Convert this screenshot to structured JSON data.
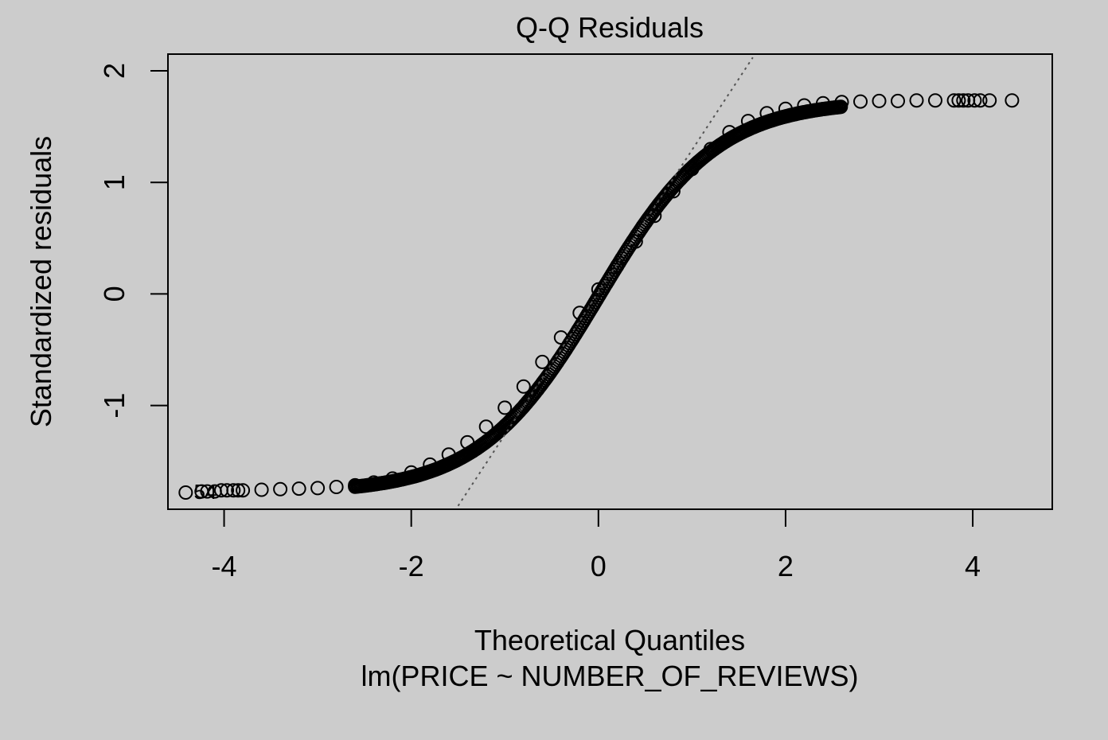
{
  "chart_data": {
    "type": "scatter",
    "title": "Q-Q Residuals",
    "xlabel": "Theoretical Quantiles",
    "subtitle": "lm(PRICE ~ NUMBER_OF_REVIEWS)",
    "ylabel": "Standardized residuals",
    "xlim": [
      -4.6,
      4.85
    ],
    "ylim": [
      -1.93,
      2.15
    ],
    "xticks": [
      -4,
      -2,
      0,
      2,
      4
    ],
    "yticks": [
      -1,
      0,
      1,
      2
    ],
    "xtick_labels": [
      "-4",
      "-2",
      "0",
      "2",
      "4"
    ],
    "ytick_labels": [
      "-1",
      "0",
      "1",
      "2"
    ],
    "grid": false,
    "reference_line": {
      "style": "dotted",
      "through": [
        [
          -1.5,
          -1.9
        ],
        [
          1.65,
          2.12
        ]
      ]
    },
    "series_points": [
      [
        -4.41,
        -1.78
      ],
      [
        -4.24,
        -1.77
      ],
      [
        -4.18,
        -1.77
      ],
      [
        -4.1,
        -1.77
      ],
      [
        -4.03,
        -1.76
      ],
      [
        -3.97,
        -1.76
      ],
      [
        -3.9,
        -1.76
      ],
      [
        -3.85,
        -1.76
      ],
      [
        -3.8,
        -1.76
      ],
      [
        -3.6,
        -1.755
      ],
      [
        -3.4,
        -1.75
      ],
      [
        -3.2,
        -1.745
      ],
      [
        -3.0,
        -1.74
      ],
      [
        -2.8,
        -1.73
      ],
      [
        -2.6,
        -1.715
      ],
      [
        -2.4,
        -1.69
      ],
      [
        -2.2,
        -1.655
      ],
      [
        -2.0,
        -1.6
      ],
      [
        -1.8,
        -1.53
      ],
      [
        -1.6,
        -1.44
      ],
      [
        -1.4,
        -1.33
      ],
      [
        -1.2,
        -1.19
      ],
      [
        -1.0,
        -1.02
      ],
      [
        -0.8,
        -0.83
      ],
      [
        -0.6,
        -0.61
      ],
      [
        -0.4,
        -0.39
      ],
      [
        -0.2,
        -0.17
      ],
      [
        0.0,
        0.04
      ],
      [
        0.2,
        0.25
      ],
      [
        0.4,
        0.47
      ],
      [
        0.6,
        0.7
      ],
      [
        0.8,
        0.92
      ],
      [
        1.0,
        1.12
      ],
      [
        1.2,
        1.3
      ],
      [
        1.4,
        1.45
      ],
      [
        1.6,
        1.55
      ],
      [
        1.8,
        1.62
      ],
      [
        2.0,
        1.66
      ],
      [
        2.2,
        1.69
      ],
      [
        2.4,
        1.71
      ],
      [
        2.6,
        1.72
      ],
      [
        2.8,
        1.725
      ],
      [
        3.0,
        1.73
      ],
      [
        3.2,
        1.73
      ],
      [
        3.4,
        1.735
      ],
      [
        3.6,
        1.735
      ],
      [
        3.8,
        1.735
      ],
      [
        3.85,
        1.735
      ],
      [
        3.9,
        1.735
      ],
      [
        3.95,
        1.735
      ],
      [
        4.02,
        1.735
      ],
      [
        4.08,
        1.735
      ],
      [
        4.18,
        1.735
      ],
      [
        4.42,
        1.735
      ]
    ],
    "point_labels": [
      {
        "text": "54",
        "x": -4.0,
        "y": -1.76
      }
    ]
  }
}
